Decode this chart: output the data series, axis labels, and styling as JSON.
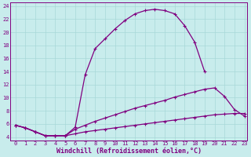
{
  "xlabel": "Windchill (Refroidissement éolien,°C)",
  "background_color": "#c8ecec",
  "line_color": "#800080",
  "xlim": [
    -0.5,
    23.3
  ],
  "ylim": [
    3.5,
    24.5
  ],
  "xticks": [
    0,
    1,
    2,
    3,
    4,
    5,
    6,
    7,
    8,
    9,
    10,
    11,
    12,
    13,
    14,
    15,
    16,
    17,
    18,
    19,
    20,
    21,
    22,
    23
  ],
  "yticks": [
    4,
    6,
    8,
    10,
    12,
    14,
    16,
    18,
    20,
    22,
    24
  ],
  "grid_color": "#a8d8d8",
  "line1_x": [
    0,
    1,
    2,
    3,
    4,
    5,
    6,
    7,
    8,
    9,
    10,
    11,
    12,
    13,
    14,
    15,
    16,
    17,
    18,
    19
  ],
  "line1_y": [
    5.8,
    5.4,
    4.8,
    4.2,
    4.2,
    4.2,
    5.5,
    13.5,
    17.5,
    19.0,
    20.5,
    21.8,
    22.8,
    23.3,
    23.5,
    23.3,
    22.8,
    21.0,
    18.5,
    14.0
  ],
  "line2_x": [
    0,
    1,
    2,
    3,
    4,
    5,
    6,
    7,
    8,
    9,
    10,
    11,
    12,
    13,
    14,
    15,
    16,
    17,
    18,
    19,
    20,
    21,
    22,
    23
  ],
  "line2_y": [
    5.8,
    5.4,
    4.8,
    4.2,
    4.2,
    4.2,
    5.2,
    5.8,
    6.4,
    6.9,
    7.4,
    7.9,
    8.4,
    8.8,
    9.2,
    9.6,
    10.1,
    10.5,
    10.9,
    11.3,
    11.5,
    10.2,
    8.2,
    7.2
  ],
  "line3_x": [
    0,
    1,
    2,
    3,
    4,
    5,
    6,
    7,
    8,
    9,
    10,
    11,
    12,
    13,
    14,
    15,
    16,
    17,
    18,
    19,
    20,
    21,
    22,
    23
  ],
  "line3_y": [
    5.8,
    5.4,
    4.8,
    4.2,
    4.2,
    4.2,
    4.5,
    4.8,
    5.0,
    5.2,
    5.4,
    5.6,
    5.8,
    6.0,
    6.2,
    6.4,
    6.6,
    6.8,
    7.0,
    7.2,
    7.4,
    7.5,
    7.6,
    7.6
  ],
  "marker": "+",
  "markersize": 3,
  "linewidth": 0.9,
  "tick_fontsize": 5.0,
  "xlabel_fontsize": 6.0
}
